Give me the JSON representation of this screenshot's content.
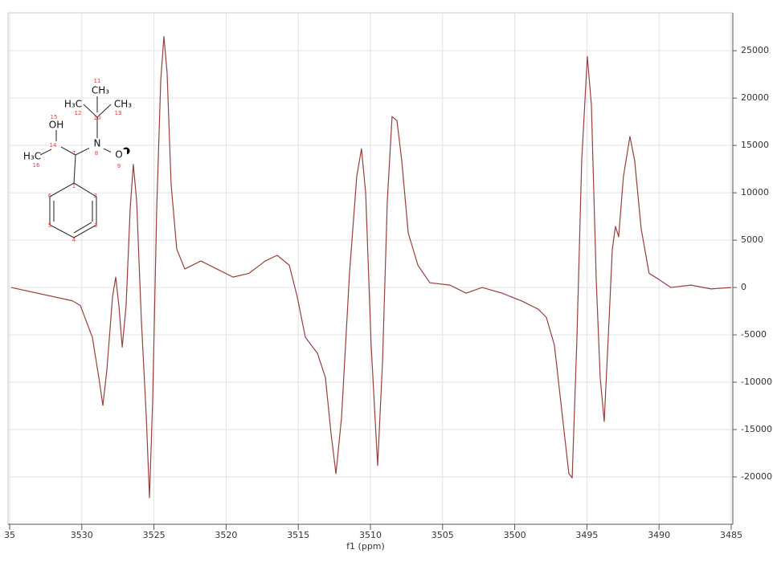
{
  "chart_data": {
    "type": "line",
    "x_label": "f1 (ppm)",
    "xlim": [
      3535,
      3485
    ],
    "xticks": [
      {
        "value": 3535,
        "label": "35"
      },
      3530,
      3525,
      3520,
      3515,
      3510,
      3505,
      3500,
      3495,
      3490,
      3485
    ],
    "ylim": [
      -25000,
      29000
    ],
    "yticks": [
      -20000,
      -15000,
      -10000,
      -5000,
      0,
      5000,
      10000,
      15000,
      20000,
      25000
    ],
    "grid": true,
    "x": [
      3534.89,
      3530.66,
      3530.1,
      3529.27,
      3528.82,
      3528.54,
      3528.26,
      3527.87,
      3527.65,
      3527.43,
      3527.2,
      3526.93,
      3526.65,
      3526.43,
      3526.2,
      3525.87,
      3525.53,
      3525.31,
      3525.09,
      3524.81,
      3524.53,
      3524.31,
      3524.09,
      3523.81,
      3523.42,
      3522.86,
      3521.75,
      3520.64,
      3519.52,
      3518.41,
      3517.29,
      3516.46,
      3515.62,
      3515.07,
      3514.51,
      3513.67,
      3513.12,
      3512.73,
      3512.39,
      3512.0,
      3511.45,
      3510.95,
      3510.62,
      3510.33,
      3509.95,
      3509.5,
      3509.16,
      3508.83,
      3508.5,
      3508.16,
      3507.83,
      3507.38,
      3506.71,
      3505.88,
      3504.49,
      3503.37,
      3502.26,
      3500.87,
      3499.48,
      3498.36,
      3497.81,
      3497.25,
      3496.69,
      3496.25,
      3496.02,
      3495.69,
      3495.36,
      3494.97,
      3494.69,
      3494.35,
      3494.08,
      3493.8,
      3493.52,
      3493.24,
      3493.02,
      3492.8,
      3492.47,
      3492.02,
      3491.69,
      3491.24,
      3490.69,
      3490.01,
      3489.18,
      3487.79,
      3486.4,
      3485.0
    ],
    "series": [
      {
        "color": "#9a3f3c",
        "values": [
          0,
          -1400,
          -1900,
          -5250,
          -9500,
          -12450,
          -8650,
          -1000,
          1100,
          -1900,
          -6300,
          -1900,
          8300,
          13000,
          9150,
          -3550,
          -13700,
          -22200,
          -12000,
          8300,
          21850,
          26500,
          22700,
          10850,
          4050,
          1950,
          2800,
          1950,
          1100,
          1500,
          2800,
          3400,
          2350,
          -1000,
          -5250,
          -6950,
          -9500,
          -15400,
          -19650,
          -13700,
          1500,
          11700,
          14650,
          10000,
          -6100,
          -18800,
          -7800,
          9150,
          18050,
          17600,
          13400,
          5750,
          2350,
          500,
          250,
          -600,
          0,
          -600,
          -1450,
          -2300,
          -3150,
          -6100,
          -13700,
          -19650,
          -20100,
          -5250,
          13400,
          24400,
          19300,
          700,
          -9500,
          -14150,
          -5250,
          4050,
          6450,
          5350,
          11700,
          15950,
          13400,
          6200,
          1500,
          850,
          0,
          250,
          -150,
          0
        ]
      }
    ],
    "structure_groups": [
      "CH₃",
      "H₃C",
      "CH₃",
      "N",
      "O",
      "OH",
      "H₃C"
    ],
    "atom_numbers": [
      "1",
      "2",
      "3",
      "4",
      "5",
      "6",
      "7",
      "8",
      "9",
      "10",
      "11",
      "12",
      "13",
      "14",
      "15",
      "16"
    ]
  }
}
